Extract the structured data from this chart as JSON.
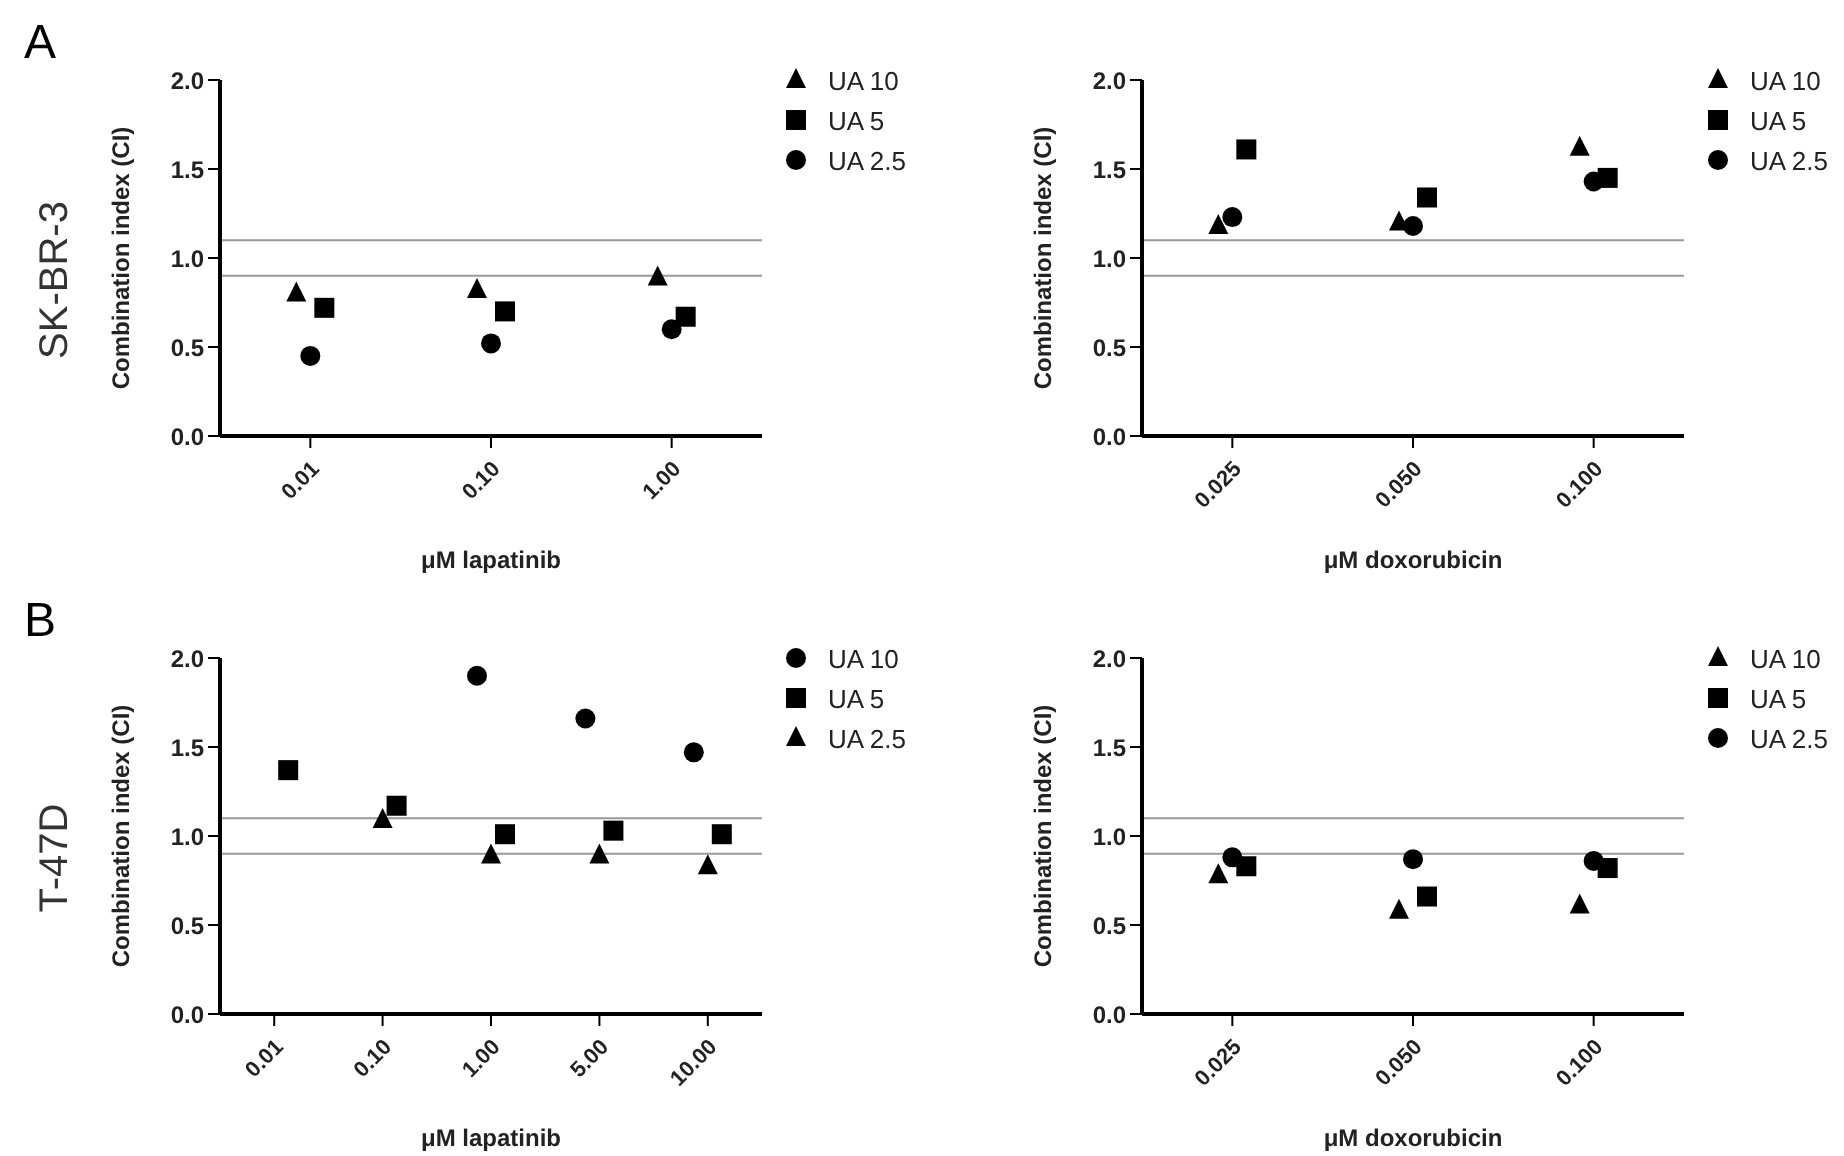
{
  "chart_data": [
    {
      "type": "scatter",
      "annotations": [
        "A",
        "SK-BR-3"
      ],
      "xlabel": "μM lapatinib",
      "ylabel": "Combination index (CI)",
      "categories": [
        "0.01",
        "0.10",
        "1.00"
      ],
      "ylim": [
        0,
        2
      ],
      "yticks": [
        {
          "value": 0,
          "label": "0.0"
        },
        {
          "value": 0.5,
          "label": "0.5"
        },
        {
          "value": 1,
          "label": "1.0"
        },
        {
          "value": 1.5,
          "label": "1.5"
        },
        {
          "value": 2,
          "label": "2.0"
        }
      ],
      "legend": "right",
      "grid": false,
      "ref_lines": [
        {
          "axis": "y",
          "value": 1.1,
          "color": "#999999"
        },
        {
          "axis": "y",
          "value": 0.9,
          "color": "#999999"
        }
      ],
      "series": [
        {
          "name": "UA 10",
          "color": "#000000",
          "marker": "triangle",
          "values": [
            0.8,
            0.82,
            0.89
          ]
        },
        {
          "name": "UA 5",
          "color": "#000000",
          "marker": "square",
          "values": [
            0.72,
            0.7,
            0.67
          ]
        },
        {
          "name": "UA 2.5",
          "color": "#000000",
          "marker": "circle",
          "values": [
            0.45,
            0.52,
            0.6
          ]
        }
      ]
    },
    {
      "type": "scatter",
      "xlabel": "μM doxorubicin",
      "ylabel": "Combination index (CI)",
      "categories": [
        "0.025",
        "0.050",
        "0.100"
      ],
      "ylim": [
        0,
        2
      ],
      "yticks": [
        {
          "value": 0,
          "label": "0.0"
        },
        {
          "value": 0.5,
          "label": "0.5"
        },
        {
          "value": 1,
          "label": "1.0"
        },
        {
          "value": 1.5,
          "label": "1.5"
        },
        {
          "value": 2,
          "label": "2.0"
        }
      ],
      "legend": "right",
      "grid": false,
      "ref_lines": [
        {
          "axis": "y",
          "value": 1.1,
          "color": "#999999"
        },
        {
          "axis": "y",
          "value": 0.9,
          "color": "#999999"
        }
      ],
      "series": [
        {
          "name": "UA 10",
          "color": "#000000",
          "marker": "triangle",
          "values": [
            1.18,
            1.2,
            1.62
          ]
        },
        {
          "name": "UA 5",
          "color": "#000000",
          "marker": "square",
          "values": [
            1.61,
            1.34,
            1.45
          ]
        },
        {
          "name": "UA 2.5",
          "color": "#000000",
          "marker": "circle",
          "values": [
            1.23,
            1.18,
            1.43
          ]
        }
      ]
    },
    {
      "type": "scatter",
      "annotations": [
        "B",
        "T-47D"
      ],
      "xlabel": "μM lapatinib",
      "ylabel": "Combination index (CI)",
      "categories": [
        "0.01",
        "0.10",
        "1.00",
        "5.00",
        "10.00"
      ],
      "ylim": [
        0,
        2
      ],
      "yticks": [
        {
          "value": 0,
          "label": "0.0"
        },
        {
          "value": 0.5,
          "label": "0.5"
        },
        {
          "value": 1,
          "label": "1.0"
        },
        {
          "value": 1.5,
          "label": "1.5"
        },
        {
          "value": 2,
          "label": "2.0"
        }
      ],
      "legend": "right",
      "grid": false,
      "ref_lines": [
        {
          "axis": "y",
          "value": 1.1,
          "color": "#999999"
        },
        {
          "axis": "y",
          "value": 0.9,
          "color": "#999999"
        }
      ],
      "series": [
        {
          "name": "UA 10",
          "color": "#000000",
          "marker": "circle",
          "values": [
            null,
            null,
            1.9,
            1.66,
            1.47
          ]
        },
        {
          "name": "UA 5",
          "color": "#000000",
          "marker": "square",
          "values": [
            1.37,
            1.17,
            1.01,
            1.03,
            1.01
          ]
        },
        {
          "name": "UA 2.5",
          "color": "#000000",
          "marker": "triangle",
          "values": [
            null,
            1.09,
            0.89,
            0.89,
            0.83
          ]
        }
      ]
    },
    {
      "type": "scatter",
      "xlabel": "μM doxorubicin",
      "ylabel": "Combination index (CI)",
      "categories": [
        "0.025",
        "0.050",
        "0.100"
      ],
      "ylim": [
        0,
        2
      ],
      "yticks": [
        {
          "value": 0,
          "label": "0.0"
        },
        {
          "value": 0.5,
          "label": "0.5"
        },
        {
          "value": 1,
          "label": "1.0"
        },
        {
          "value": 1.5,
          "label": "1.5"
        },
        {
          "value": 2,
          "label": "2.0"
        }
      ],
      "legend": "right",
      "grid": false,
      "ref_lines": [
        {
          "axis": "y",
          "value": 1.1,
          "color": "#999999"
        },
        {
          "axis": "y",
          "value": 0.9,
          "color": "#999999"
        }
      ],
      "series": [
        {
          "name": "UA 10",
          "color": "#000000",
          "marker": "triangle",
          "values": [
            0.78,
            0.58,
            0.61
          ]
        },
        {
          "name": "UA 5",
          "color": "#000000",
          "marker": "square",
          "values": [
            0.83,
            0.66,
            0.82
          ]
        },
        {
          "name": "UA 2.5",
          "color": "#000000",
          "marker": "circle",
          "values": [
            0.88,
            0.87,
            0.86
          ]
        }
      ]
    }
  ]
}
